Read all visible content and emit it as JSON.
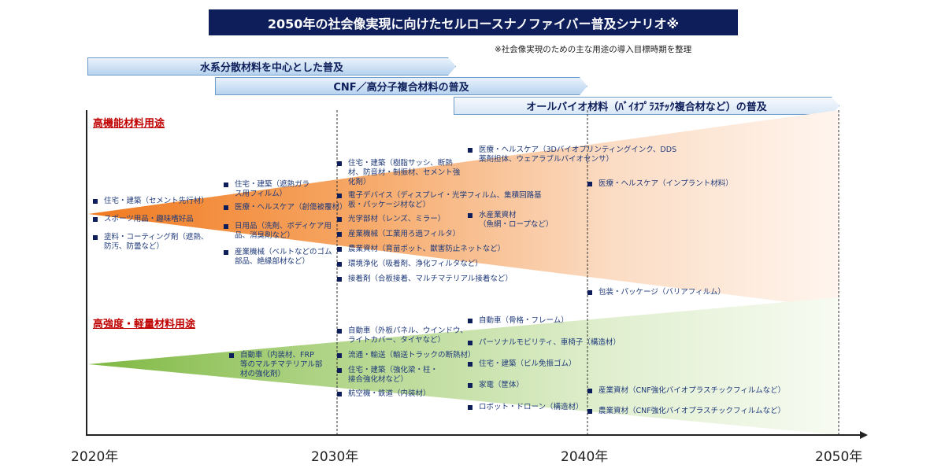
{
  "title": "2050年の社会像実現に向けたセルロースナノファイバー普及シナリオ※",
  "note": "※社会像実現のための主な用途の導入目標時期を整理",
  "phases": [
    "水系分散材料を中心とした普及",
    "CNF／高分子複合材料の普及",
    "オールバイオ材料（ﾊﾞｲｵﾌﾟﾗｽﾁｯｸ複合材など）の普及"
  ],
  "years": [
    "2020年",
    "2030年",
    "2040年",
    "2050年"
  ],
  "colors": {
    "title_bg": "#0e1e5b",
    "section_label": "#c00000",
    "high_function_wedge": "#f07a20",
    "high_strength_wedge": "#8dc054"
  },
  "high_function": {
    "label": "高機能材料用途",
    "items": [
      "住宅・建築（セメント先行材）",
      "スポーツ用品・趣味嗜好品",
      "塗料・コーティング剤（遮熱、\n防汚、防曇など）",
      "住宅・建築（遮熱ガラ\nス用フィルム）",
      "医療・ヘルスケア（創傷被覆材）",
      "日用品（洗剤、ボディケア用\n品、消臭剤など）",
      "産業機械（ベルトなどのゴム\n部品、絶縁部材など）",
      "住宅・建築（樹脂サッシ、断熱\n材、防音材・制振材、セメント強\n化剤）",
      "電子デバイス（ディスプレイ・光学フィルム、集積回路基\n板・パッケージ材など）",
      "光学部材（レンズ、ミラー）",
      "産業機械（工業用ろ過フィルタ）",
      "農業資材（育苗ポット、獣害防止ネットなど）",
      "環境浄化（吸着剤、浄化フィルタなど）",
      "接着剤（合板接着、マルチマテリアル接着など）",
      "医療・ヘルスケア（3Dバイオプリンティングインク、DDS\n薬剤担体、ウェアラブルバイオセンサ）",
      "水産業資材\n（魚網・ロープなど）",
      "医療・ヘルスケア（インプラント材料）",
      "包装・パッケージ（バリアフィルム）"
    ]
  },
  "high_strength": {
    "label": "高強度・軽量材料用途",
    "items": [
      "自動車（内装材、FRP\n等のマルチマテリアル部\n材の強化剤）",
      "自動車（外板パネル、ウインドウ、\nライトカバー、タイヤなど）",
      "流通・輸送（輸送トラックの断熱材）",
      "住宅・建築（強化梁・柱・\n接合強化材など）",
      "航空機・鉄道（内装材）",
      "自動車（骨格・フレーム）",
      "パーソナルモビリティ、車椅子（構造材）",
      "住宅・建築（ビル免振ゴム）",
      "家電（筐体）",
      "ロボット・ドローン（構造材）",
      "産業資材（CNF強化バイオプラスチックフィルムなど）",
      "農業資材（CNF強化バイオプラスチックフィルムなど）"
    ]
  }
}
